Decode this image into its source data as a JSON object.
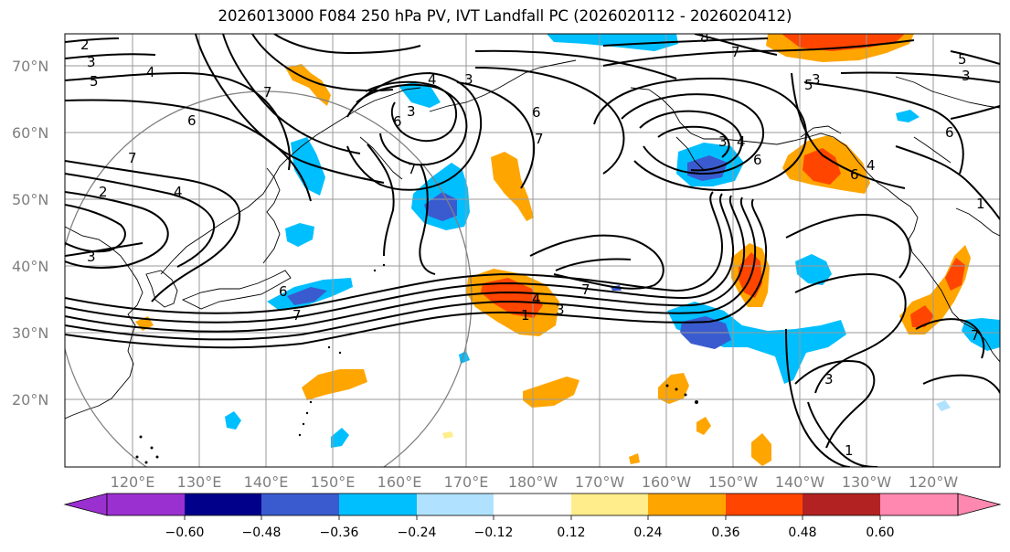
{
  "title": "2026013000 F084 250 hPa PV, IVT Landfall PC (2026020112 - 2026020412)",
  "lat_labels": [
    "70°N",
    "60°N",
    "50°N",
    "40°N",
    "30°N",
    "20°N"
  ],
  "lon_labels": [
    "120°E",
    "130°E",
    "140°E",
    "150°E",
    "160°E",
    "170°E",
    "180°W",
    "170°W",
    "160°W",
    "150°W",
    "140°W",
    "130°W",
    "120°W"
  ],
  "colorbar": {
    "colors": [
      "#9b30d0",
      "#00008b",
      "#3a5bd0",
      "#00bfff",
      "#b0e2ff",
      "#ffffff",
      "#ffec8b",
      "#ffa500",
      "#ff4500",
      "#b22222",
      "#ff88b0"
    ],
    "tick_labels": [
      "−0.60",
      "−0.48",
      "−0.36",
      "−0.24",
      "−0.12",
      "0.12",
      "0.24",
      "0.36",
      "0.48",
      "0.60"
    ]
  },
  "contour_labels": [
    "2",
    "3",
    "3",
    "4",
    "5",
    "6",
    "6",
    "7",
    "7",
    "2",
    "4",
    "3",
    "6",
    "4",
    "3",
    "7",
    "6",
    "7",
    "8",
    "7",
    "5",
    "3",
    "4",
    "6",
    "7",
    "6",
    "7",
    "1",
    "4",
    "3",
    "5",
    "3",
    "1",
    "3",
    "6",
    "4",
    "7",
    "1",
    "3"
  ],
  "colors": {
    "contour": "#000000",
    "grid": "#9a9a9a",
    "coast": "#000000",
    "circle": "#808080"
  }
}
